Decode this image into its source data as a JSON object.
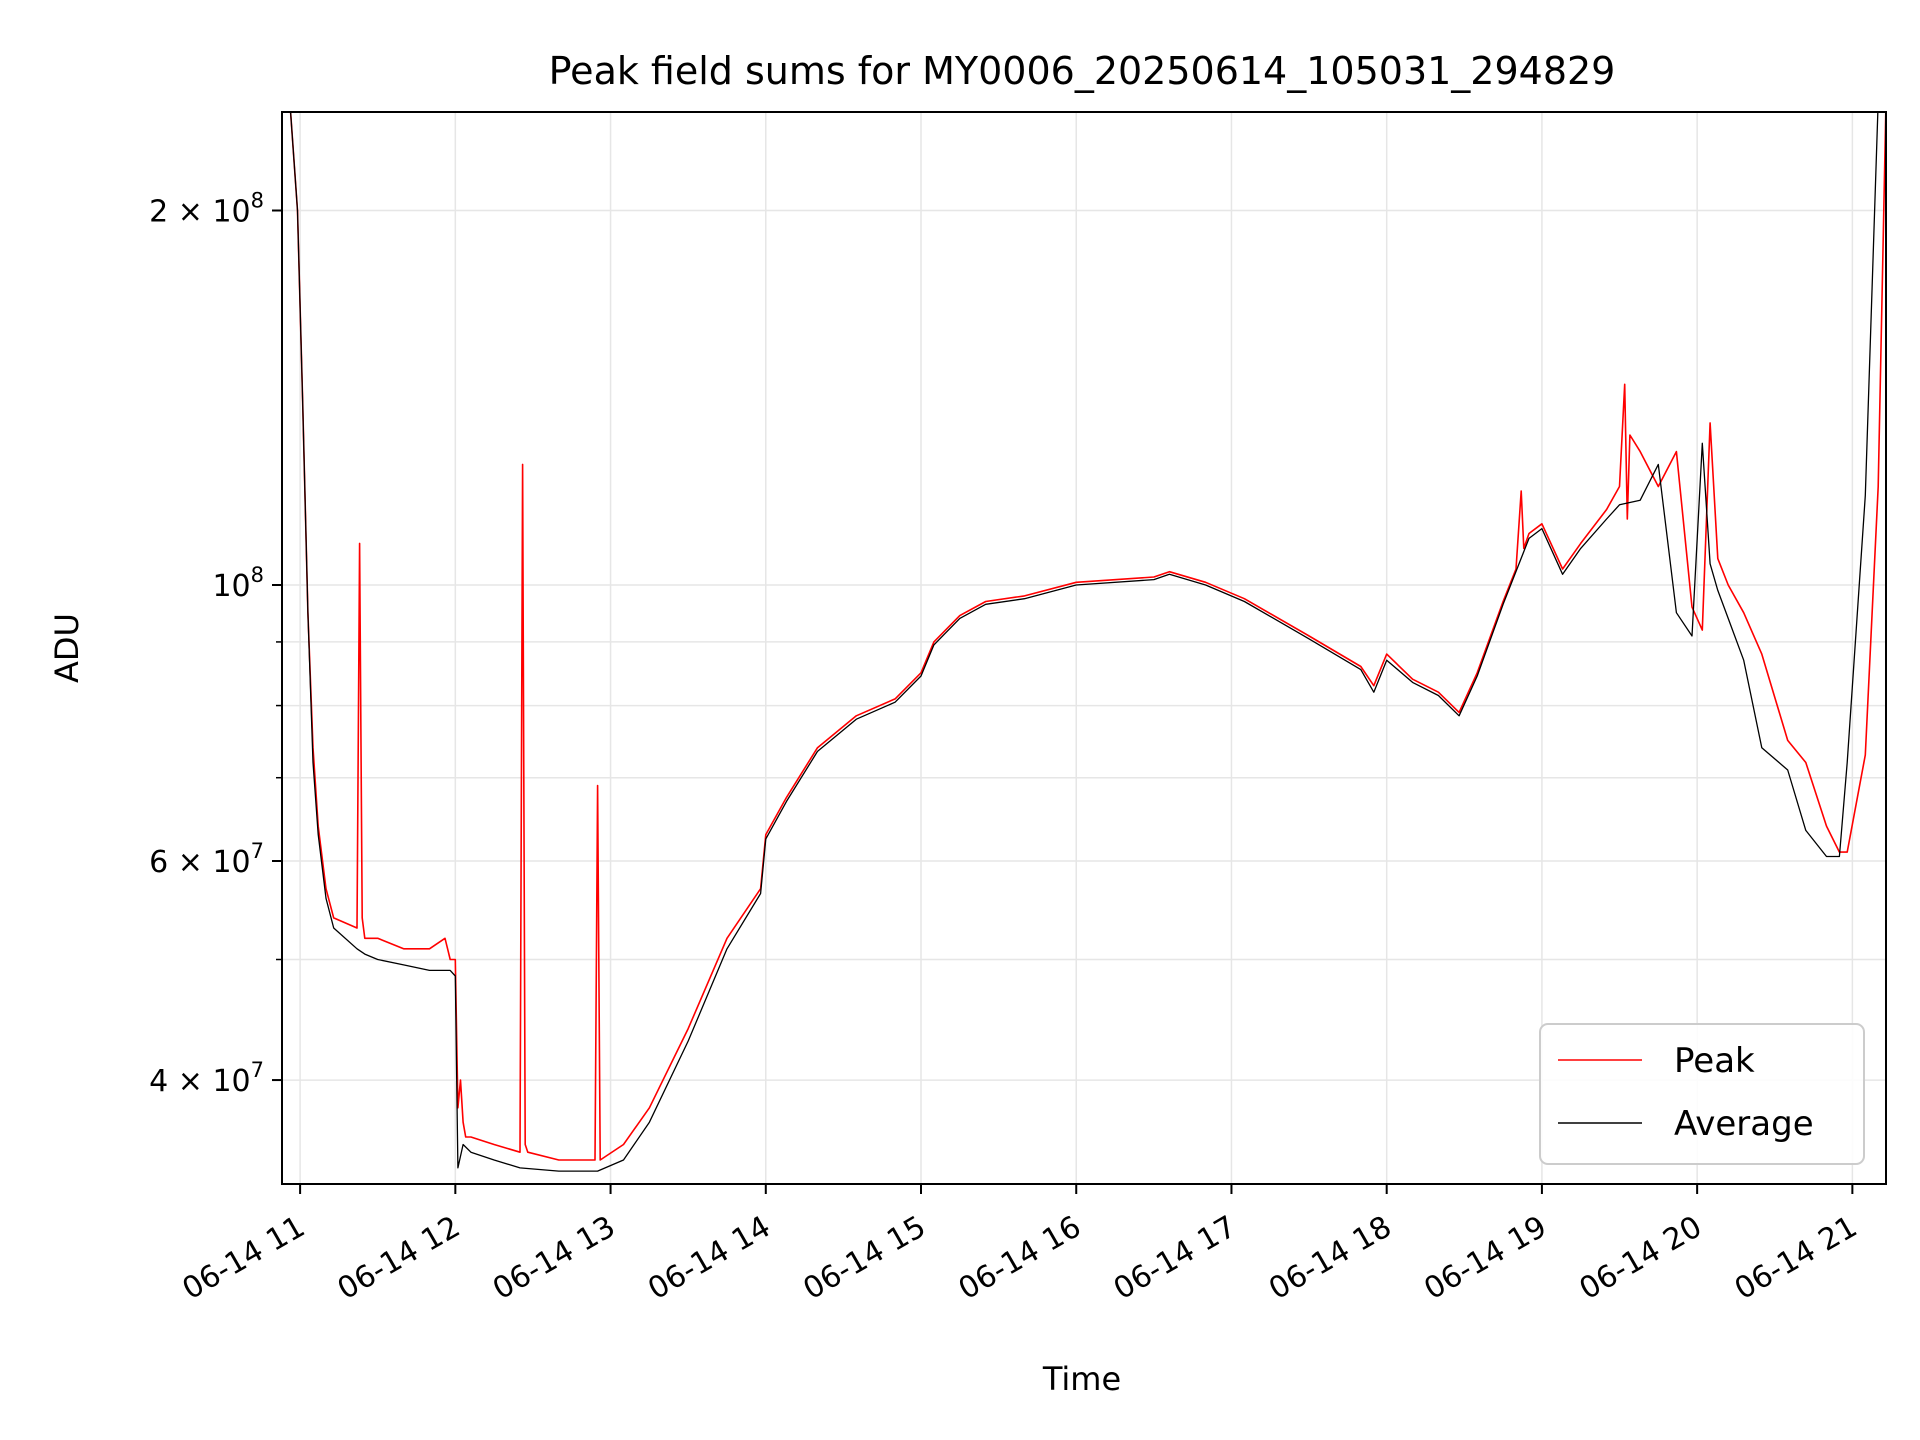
{
  "chart_data": {
    "type": "line",
    "title": "Peak field sums for MY0006_20250614_105031_294829",
    "xlabel": "Time",
    "ylabel": "ADU",
    "y_scale": "log",
    "ylim": [
      33000000,
      240000000
    ],
    "xlim": [
      "2025-06-14T10:53:00",
      "2025-06-14T21:13:00"
    ],
    "grid": true,
    "legend_position": "lower-right",
    "x_ticks": [
      {
        "value": "2025-06-14T11:00:00",
        "label": "06-14 11"
      },
      {
        "value": "2025-06-14T12:00:00",
        "label": "06-14 12"
      },
      {
        "value": "2025-06-14T13:00:00",
        "label": "06-14 13"
      },
      {
        "value": "2025-06-14T14:00:00",
        "label": "06-14 14"
      },
      {
        "value": "2025-06-14T15:00:00",
        "label": "06-14 15"
      },
      {
        "value": "2025-06-14T16:00:00",
        "label": "06-14 16"
      },
      {
        "value": "2025-06-14T17:00:00",
        "label": "06-14 17"
      },
      {
        "value": "2025-06-14T18:00:00",
        "label": "06-14 18"
      },
      {
        "value": "2025-06-14T19:00:00",
        "label": "06-14 19"
      },
      {
        "value": "2025-06-14T20:00:00",
        "label": "06-14 20"
      },
      {
        "value": "2025-06-14T21:00:00",
        "label": "06-14 21"
      }
    ],
    "y_major_ticks": [
      {
        "value": 40000000,
        "mantissa": "4",
        "base": "10",
        "exp": "7"
      },
      {
        "value": 60000000,
        "mantissa": "6",
        "base": "10",
        "exp": "7"
      },
      {
        "value": 100000000,
        "mantissa": "",
        "base": "10",
        "exp": "8"
      },
      {
        "value": 200000000,
        "mantissa": "2",
        "base": "10",
        "exp": "8"
      }
    ],
    "y_minor_ticks": [
      50000000,
      70000000,
      80000000,
      90000000
    ],
    "series": [
      {
        "name": "Peak",
        "color": "#ff0000",
        "x": [
          "2025-06-14T10:56:00",
          "2025-06-14T10:59:00",
          "2025-06-14T11:01:00",
          "2025-06-14T11:03:00",
          "2025-06-14T11:05:00",
          "2025-06-14T11:07:00",
          "2025-06-14T11:10:00",
          "2025-06-14T11:13:00",
          "2025-06-14T11:22:00",
          "2025-06-14T11:23:00",
          "2025-06-14T11:24:00",
          "2025-06-14T11:25:00",
          "2025-06-14T11:30:00",
          "2025-06-14T11:40:00",
          "2025-06-14T11:50:00",
          "2025-06-14T11:56:00",
          "2025-06-14T11:57:00",
          "2025-06-14T11:58:00",
          "2025-06-14T12:00:00",
          "2025-06-14T12:01:00",
          "2025-06-14T12:02:00",
          "2025-06-14T12:03:00",
          "2025-06-14T12:04:00",
          "2025-06-14T12:06:00",
          "2025-06-14T12:15:00",
          "2025-06-14T12:25:00",
          "2025-06-14T12:26:00",
          "2025-06-14T12:27:00",
          "2025-06-14T12:28:00",
          "2025-06-14T12:40:00",
          "2025-06-14T12:54:00",
          "2025-06-14T12:55:00",
          "2025-06-14T12:56:00",
          "2025-06-14T13:05:00",
          "2025-06-14T13:15:00",
          "2025-06-14T13:30:00",
          "2025-06-14T13:45:00",
          "2025-06-14T13:58:00",
          "2025-06-14T14:00:00",
          "2025-06-14T14:08:00",
          "2025-06-14T14:20:00",
          "2025-06-14T14:35:00",
          "2025-06-14T14:50:00",
          "2025-06-14T15:00:00",
          "2025-06-14T15:05:00",
          "2025-06-14T15:15:00",
          "2025-06-14T15:25:00",
          "2025-06-14T15:40:00",
          "2025-06-14T16:00:00",
          "2025-06-14T16:30:00",
          "2025-06-14T16:36:00",
          "2025-06-14T16:50:00",
          "2025-06-14T17:05:00",
          "2025-06-14T17:30:00",
          "2025-06-14T17:50:00",
          "2025-06-14T17:55:00",
          "2025-06-14T18:00:00",
          "2025-06-14T18:10:00",
          "2025-06-14T18:20:00",
          "2025-06-14T18:28:00",
          "2025-06-14T18:35:00",
          "2025-06-14T18:45:00",
          "2025-06-14T18:50:00",
          "2025-06-14T18:52:00",
          "2025-06-14T18:53:00",
          "2025-06-14T18:55:00",
          "2025-06-14T19:00:00",
          "2025-06-14T19:08:00",
          "2025-06-14T19:15:00",
          "2025-06-14T19:25:00",
          "2025-06-14T19:30:00",
          "2025-06-14T19:32:00",
          "2025-06-14T19:33:00",
          "2025-06-14T19:34:00",
          "2025-06-14T19:38:00",
          "2025-06-14T19:45:00",
          "2025-06-14T19:52:00",
          "2025-06-14T19:58:00",
          "2025-06-14T20:02:00",
          "2025-06-14T20:05:00",
          "2025-06-14T20:08:00",
          "2025-06-14T20:12:00",
          "2025-06-14T20:18:00",
          "2025-06-14T20:25:00",
          "2025-06-14T20:35:00",
          "2025-06-14T20:42:00",
          "2025-06-14T20:50:00",
          "2025-06-14T20:55:00",
          "2025-06-14T20:58:00",
          "2025-06-14T21:05:00",
          "2025-06-14T21:10:00",
          "2025-06-14T21:13:00"
        ],
        "values": [
          245000000,
          200000000,
          140000000,
          95000000,
          74000000,
          64000000,
          57000000,
          54000000,
          53000000,
          108000000,
          54000000,
          52000000,
          52000000,
          51000000,
          51000000,
          52000000,
          51000000,
          50000000,
          50000000,
          38000000,
          40000000,
          37000000,
          36000000,
          36000000,
          35500000,
          35000000,
          125000000,
          35500000,
          35000000,
          34500000,
          34500000,
          69000000,
          34500000,
          35500000,
          38000000,
          44000000,
          52000000,
          57000000,
          63000000,
          67500000,
          74000000,
          78500000,
          81000000,
          85000000,
          90000000,
          94500000,
          97000000,
          98000000,
          100500000,
          101500000,
          102500000,
          100500000,
          97500000,
          91000000,
          86000000,
          83000000,
          88000000,
          84000000,
          82000000,
          79000000,
          85000000,
          97000000,
          103000000,
          119000000,
          107000000,
          110000000,
          112000000,
          103000000,
          108000000,
          115000000,
          120000000,
          145000000,
          113000000,
          132000000,
          128000000,
          120000000,
          128000000,
          96000000,
          92000000,
          135000000,
          105000000,
          100000000,
          95000000,
          88000000,
          75000000,
          72000000,
          64000000,
          61000000,
          61000000,
          73000000,
          120000000,
          245000000
        ]
      },
      {
        "name": "Average",
        "color": "#000000",
        "x": [
          "2025-06-14T10:56:00",
          "2025-06-14T10:59:00",
          "2025-06-14T11:01:00",
          "2025-06-14T11:03:00",
          "2025-06-14T11:05:00",
          "2025-06-14T11:07:00",
          "2025-06-14T11:10:00",
          "2025-06-14T11:13:00",
          "2025-06-14T11:22:00",
          "2025-06-14T11:25:00",
          "2025-06-14T11:30:00",
          "2025-06-14T11:40:00",
          "2025-06-14T11:50:00",
          "2025-06-14T11:58:00",
          "2025-06-14T12:00:00",
          "2025-06-14T12:01:00",
          "2025-06-14T12:03:00",
          "2025-06-14T12:06:00",
          "2025-06-14T12:15:00",
          "2025-06-14T12:25:00",
          "2025-06-14T12:40:00",
          "2025-06-14T12:55:00",
          "2025-06-14T13:05:00",
          "2025-06-14T13:15:00",
          "2025-06-14T13:30:00",
          "2025-06-14T13:45:00",
          "2025-06-14T13:58:00",
          "2025-06-14T14:00:00",
          "2025-06-14T14:08:00",
          "2025-06-14T14:20:00",
          "2025-06-14T14:35:00",
          "2025-06-14T14:50:00",
          "2025-06-14T15:00:00",
          "2025-06-14T15:05:00",
          "2025-06-14T15:15:00",
          "2025-06-14T15:25:00",
          "2025-06-14T15:40:00",
          "2025-06-14T16:00:00",
          "2025-06-14T16:30:00",
          "2025-06-14T16:36:00",
          "2025-06-14T16:50:00",
          "2025-06-14T17:05:00",
          "2025-06-14T17:30:00",
          "2025-06-14T17:50:00",
          "2025-06-14T17:55:00",
          "2025-06-14T18:00:00",
          "2025-06-14T18:10:00",
          "2025-06-14T18:20:00",
          "2025-06-14T18:28:00",
          "2025-06-14T18:35:00",
          "2025-06-14T18:45:00",
          "2025-06-14T18:55:00",
          "2025-06-14T19:00:00",
          "2025-06-14T19:08:00",
          "2025-06-14T19:15:00",
          "2025-06-14T19:25:00",
          "2025-06-14T19:30:00",
          "2025-06-14T19:38:00",
          "2025-06-14T19:45:00",
          "2025-06-14T19:52:00",
          "2025-06-14T19:58:00",
          "2025-06-14T20:02:00",
          "2025-06-14T20:05:00",
          "2025-06-14T20:08:00",
          "2025-06-14T20:12:00",
          "2025-06-14T20:18:00",
          "2025-06-14T20:25:00",
          "2025-06-14T20:35:00",
          "2025-06-14T20:42:00",
          "2025-06-14T20:50:00",
          "2025-06-14T20:55:00",
          "2025-06-14T20:58:00",
          "2025-06-14T21:05:00",
          "2025-06-14T21:10:00",
          "2025-06-14T21:13:00"
        ],
        "values": [
          245000000,
          200000000,
          140000000,
          95000000,
          72000000,
          63000000,
          56000000,
          53000000,
          51000000,
          50500000,
          50000000,
          49500000,
          49000000,
          49000000,
          48500000,
          34000000,
          35500000,
          35000000,
          34500000,
          34000000,
          33800000,
          33800000,
          34500000,
          37000000,
          43000000,
          51000000,
          56500000,
          62500000,
          67000000,
          73500000,
          78000000,
          80500000,
          84500000,
          89500000,
          94000000,
          96500000,
          97500000,
          100000000,
          101000000,
          102000000,
          100000000,
          97000000,
          90500000,
          85500000,
          82000000,
          87000000,
          83500000,
          81500000,
          78500000,
          84500000,
          96500000,
          109000000,
          111000000,
          102000000,
          107000000,
          113000000,
          116000000,
          117000000,
          125000000,
          95000000,
          91000000,
          130000000,
          104000000,
          99000000,
          94000000,
          87000000,
          74000000,
          71000000,
          63500000,
          60500000,
          60500000,
          72000000,
          118000000,
          245000000,
          245000000
        ]
      }
    ]
  }
}
